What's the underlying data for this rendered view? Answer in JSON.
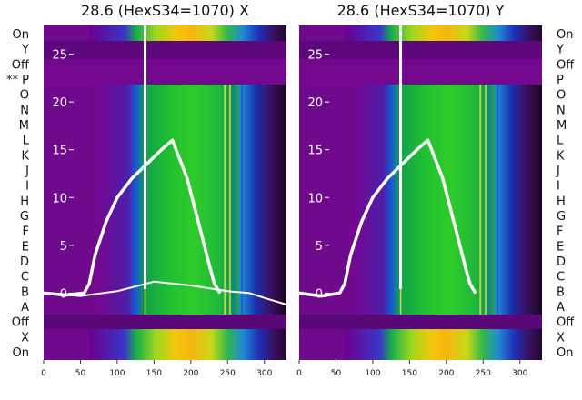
{
  "chart_data": [
    {
      "type": "heatmap",
      "title": "28.6 (HexS34=1070) X",
      "xlabel": "",
      "ylabel": "",
      "xlim": [
        0,
        330
      ],
      "ylim": [
        -7,
        28
      ],
      "xticks": [
        0,
        50,
        100,
        150,
        200,
        250,
        300
      ],
      "yticks": [
        0,
        5,
        10,
        15,
        20,
        25
      ],
      "row_labels": [
        "On",
        "Y",
        "Off",
        "** P",
        "O",
        "N",
        "M",
        "L",
        "K",
        "J",
        "I",
        "H",
        "G",
        "F",
        "E",
        "D",
        "C",
        "B",
        "A",
        "Off",
        "X",
        "On"
      ],
      "row_labels_side": "left",
      "series": [
        {
          "style": "thick-white",
          "x": [
            0,
            30,
            55,
            62,
            70,
            85,
            100,
            120,
            140,
            160,
            175,
            185,
            195,
            205,
            215,
            225,
            232,
            238,
            240
          ],
          "y": [
            0,
            -0.2,
            0,
            1,
            4,
            7.5,
            10,
            12,
            13.5,
            15,
            16,
            14,
            12,
            9,
            6,
            3,
            1,
            0.2,
            0
          ]
        },
        {
          "style": "thin-white",
          "x": [
            0,
            50,
            100,
            150,
            200,
            250,
            280,
            300,
            330
          ],
          "y": [
            0,
            -0.3,
            0.2,
            1.2,
            0.8,
            0.2,
            0,
            -0.5,
            -1.2
          ]
        }
      ]
    },
    {
      "type": "heatmap",
      "title": "28.6 (HexS34=1070) Y",
      "xlabel": "",
      "ylabel": "",
      "xlim": [
        0,
        330
      ],
      "ylim": [
        -7,
        28
      ],
      "xticks": [
        0,
        50,
        100,
        150,
        200,
        250,
        300
      ],
      "yticks": [
        0,
        5,
        10,
        15,
        20,
        25
      ],
      "row_labels": [
        "On",
        "Y",
        "Off",
        "P",
        "O",
        "N",
        "M",
        "L",
        "K",
        "J",
        "I",
        "H",
        "G",
        "F",
        "E",
        "D",
        "C",
        "B",
        "A",
        "Off",
        "X",
        "On"
      ],
      "row_labels_side": "right",
      "series": [
        {
          "style": "thick-white",
          "x": [
            0,
            30,
            55,
            62,
            70,
            85,
            100,
            120,
            140,
            160,
            175,
            185,
            195,
            205,
            215,
            225,
            232,
            238,
            240
          ],
          "y": [
            0,
            -0.3,
            0,
            1,
            4,
            7.5,
            10,
            12,
            13.5,
            15,
            16,
            14,
            12,
            9,
            6,
            3,
            1,
            0.2,
            0
          ]
        }
      ]
    }
  ]
}
